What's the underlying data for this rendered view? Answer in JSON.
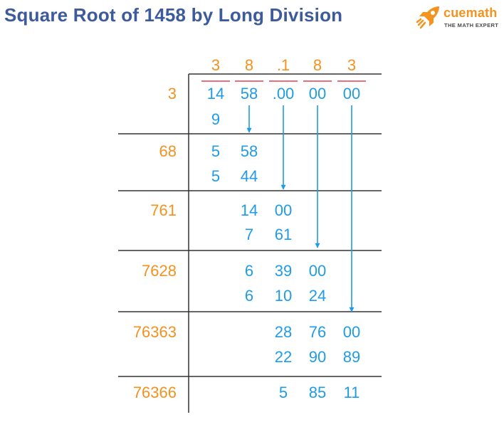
{
  "title": "Square Root of 1458 by Long Division",
  "logo": {
    "name": "cuemath",
    "tagline": "THE MATH EXPERT"
  },
  "colors": {
    "title": "#3d5a9b",
    "digits": "#1f9be8",
    "divisors": "#f39220",
    "quotient": "#f39220",
    "pair_bars": "#e8707e",
    "lines": "#333333",
    "brand_orange": "#f6931f"
  },
  "quotient_digits": [
    "3",
    "8",
    ".1",
    "8",
    "3"
  ],
  "dividend_groups": [
    "14",
    "58",
    ".00",
    "00",
    "00"
  ],
  "divisors": [
    "3",
    "68",
    "761",
    "7628",
    "76363",
    "76366"
  ],
  "steps": [
    {
      "subtract": [
        "9"
      ]
    },
    {
      "remainder": [
        "5",
        "58"
      ],
      "subtract": [
        "5",
        "44"
      ]
    },
    {
      "remainder": [
        "14",
        "00"
      ],
      "subtract": [
        "7",
        "61"
      ]
    },
    {
      "remainder": [
        "6",
        "39",
        "00"
      ],
      "subtract": [
        "6",
        "10",
        "24"
      ]
    },
    {
      "remainder": [
        "28",
        "76",
        "00"
      ],
      "subtract": [
        "22",
        "90",
        "89"
      ]
    },
    {
      "remainder": [
        "5",
        "85",
        "11"
      ]
    }
  ]
}
